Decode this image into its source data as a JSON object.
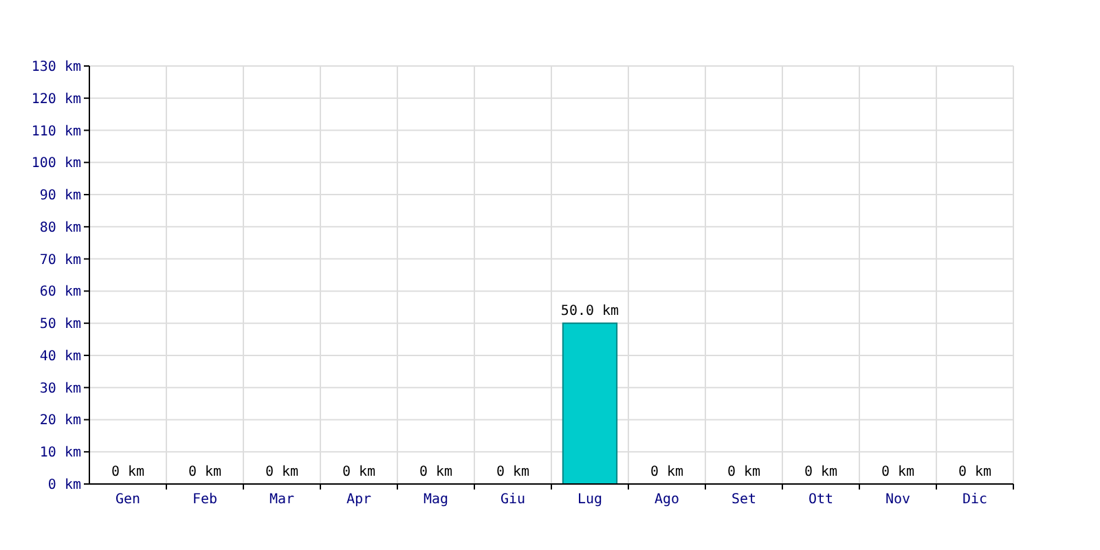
{
  "chart_data": {
    "type": "bar",
    "categories": [
      "Gen",
      "Feb",
      "Mar",
      "Apr",
      "Mag",
      "Giu",
      "Lug",
      "Ago",
      "Set",
      "Ott",
      "Nov",
      "Dic"
    ],
    "values": [
      0,
      0,
      0,
      0,
      0,
      0,
      50,
      0,
      0,
      0,
      0,
      0
    ],
    "value_labels": [
      "0 km",
      "0 km",
      "0 km",
      "0 km",
      "0 km",
      "0 km",
      "50.0 km",
      "0 km",
      "0 km",
      "0 km",
      "0 km",
      "0 km"
    ],
    "color": "#00cccc",
    "ylim": [
      0,
      130
    ],
    "yticks": [
      {
        "value": 0,
        "label": "0 km"
      },
      {
        "value": 10,
        "label": "10 km"
      },
      {
        "value": 20,
        "label": "20 km"
      },
      {
        "value": 30,
        "label": "30 km"
      },
      {
        "value": 40,
        "label": "40 km"
      },
      {
        "value": 50,
        "label": "50 km"
      },
      {
        "value": 60,
        "label": "60 km"
      },
      {
        "value": 70,
        "label": "70 km"
      },
      {
        "value": 80,
        "label": "80 km"
      },
      {
        "value": 90,
        "label": "90 km"
      },
      {
        "value": 100,
        "label": "100 km"
      },
      {
        "value": 110,
        "label": "110 km"
      },
      {
        "value": 120,
        "label": "120 km"
      },
      {
        "value": 130,
        "label": "130 km"
      }
    ],
    "grid": true
  }
}
